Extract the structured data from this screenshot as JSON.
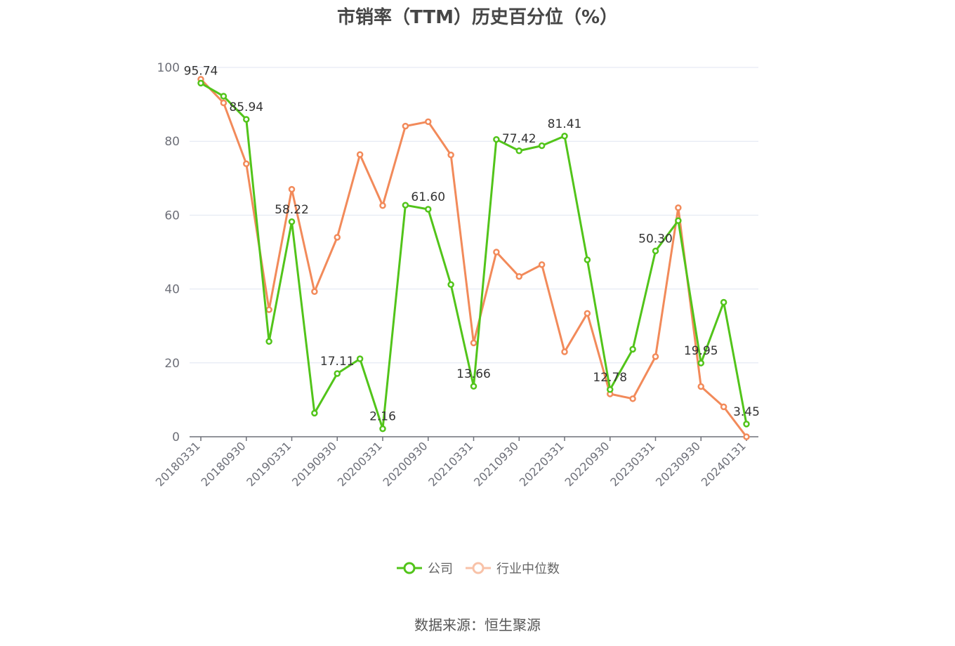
{
  "chart_data": {
    "type": "line",
    "title": "市销率（TTM）历史百分位（%）",
    "ylim": [
      0,
      100
    ],
    "yticks": [
      0,
      20,
      40,
      60,
      80,
      100
    ],
    "grid": true,
    "legend_position": "bottom",
    "x": [
      "20180331",
      "20180630",
      "20180930",
      "20181231",
      "20190331",
      "20190630",
      "20190930",
      "20191231",
      "20200331",
      "20200630",
      "20200930",
      "20201231",
      "20210331",
      "20210630",
      "20210930",
      "20211231",
      "20220331",
      "20220630",
      "20220930",
      "20221231",
      "20230331",
      "20230630",
      "20230930",
      "20231231",
      "20240131"
    ],
    "xtick_labels": [
      "20180331",
      "20180930",
      "20190331",
      "20190930",
      "20200331",
      "20200930",
      "20210331",
      "20210930",
      "20220331",
      "20220930",
      "20230331",
      "20230930",
      "20240131"
    ],
    "series": [
      {
        "name": "公司",
        "color": "#52c41a",
        "values": [
          95.74,
          92.2,
          85.94,
          25.8,
          58.22,
          6.4,
          17.11,
          21.1,
          2.16,
          62.7,
          61.6,
          41.2,
          13.66,
          80.5,
          77.42,
          78.8,
          81.41,
          47.9,
          12.78,
          23.7,
          50.3,
          58.5,
          19.95,
          36.4,
          3.45
        ],
        "labels": [
          "95.74",
          "",
          "85.94",
          "",
          "58.22",
          "",
          "17.11",
          "",
          "2.16",
          "",
          "61.60",
          "",
          "13.66",
          "",
          "77.42",
          "",
          "81.41",
          "",
          "12.78",
          "",
          "50.30",
          "",
          "19.95",
          "",
          "3.45"
        ]
      },
      {
        "name": "行业中位数",
        "color": "#f28a5a",
        "values": [
          96.8,
          90.4,
          73.9,
          34.4,
          67.0,
          39.3,
          54.0,
          76.4,
          62.6,
          84.1,
          85.3,
          76.3,
          25.4,
          50.0,
          43.4,
          46.6,
          23.0,
          33.4,
          11.6,
          10.3,
          21.7,
          62.0,
          13.6,
          8.1,
          0.0
        ]
      }
    ]
  },
  "source": "数据来源：恒生聚源"
}
